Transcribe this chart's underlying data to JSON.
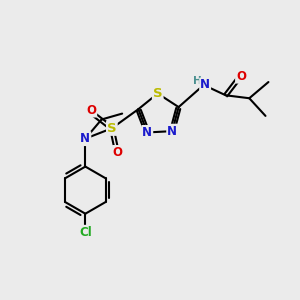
{
  "bg_color": "#ebebeb",
  "bond_color": "#000000",
  "bond_width": 1.5,
  "atom_colors": {
    "S_ring": "#bbbb00",
    "S_sulfonyl": "#bbbb00",
    "N": "#1a1acc",
    "O": "#dd0000",
    "Cl": "#22aa22",
    "H": "#4a9090",
    "C": "#000000"
  },
  "font_size": 8.5
}
